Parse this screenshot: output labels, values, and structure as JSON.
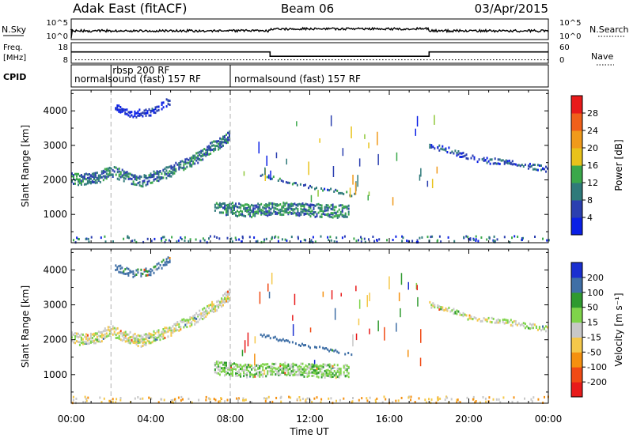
{
  "header": {
    "title": "Adak East (fitACF)",
    "beam": "Beam 06",
    "date": "03/Apr/2015"
  },
  "strip_nsky": {
    "label_left": "N.Sky",
    "label_right": "N.Search",
    "left_ticks": [
      "10^5",
      "10^0"
    ],
    "right_ticks": [
      "10^5",
      "10^0"
    ]
  },
  "strip_freq": {
    "label_left_1": "Freq.",
    "label_left_2": "[MHz]",
    "label_right": "Nave",
    "left_ticks": [
      "18",
      "8"
    ],
    "right_ticks": [
      "60",
      "0"
    ],
    "freq_segments": [
      {
        "x0": 0,
        "x1": 10,
        "value": 13.5
      },
      {
        "x0": 10,
        "x1": 18,
        "value": 11.4
      },
      {
        "x0": 18,
        "x1": 24,
        "value": 13.5
      }
    ],
    "nave_level": 10
  },
  "cpid": {
    "label": "CPID",
    "segments": [
      {
        "start": 0,
        "text": "normalsound (fast) 157 RF"
      },
      {
        "start": 2,
        "text": "rbsp 200 RF"
      },
      {
        "start": 8,
        "text": "normalsound (fast) 157 RF"
      }
    ]
  },
  "colors": {
    "power": [
      "#0a1fe6",
      "#2b3fb0",
      "#2f7a7a",
      "#3aa84a",
      "#90c83a",
      "#e8c21a",
      "#f09a1a",
      "#f0601a",
      "#e81a1a"
    ],
    "velocity": [
      "#e81a1a",
      "#f04a14",
      "#f5900f",
      "#f5c84a",
      "#c8c8c8",
      "#7fd44a",
      "#2f9a2f",
      "#3f6fa6",
      "#1a2fd0"
    ]
  },
  "chart_data": [
    {
      "type": "heatmap",
      "panel": "power",
      "xlabel": "",
      "ylabel": "Slant Range [km]",
      "xlim": [
        0,
        24
      ],
      "ylim": [
        180,
        4600
      ],
      "yticks": [
        1000,
        2000,
        3000,
        4000
      ],
      "colorbar": {
        "label": "Power [dB]",
        "ticks": [
          "4",
          "8",
          "12",
          "16",
          "20",
          "24",
          "28"
        ],
        "range": [
          0,
          32
        ]
      },
      "regions": [
        {
          "name": "band-a",
          "x": [
            0,
            0.5,
            1,
            1.5,
            2,
            2.5,
            3,
            3.5,
            4,
            4.5,
            5,
            5.5,
            6,
            6.5,
            7,
            7.5,
            8
          ],
          "y": [
            2050,
            2000,
            2030,
            2100,
            2250,
            2150,
            2050,
            1950,
            2050,
            2150,
            2250,
            2400,
            2500,
            2700,
            2900,
            3050,
            3300
          ],
          "thickness": 320,
          "level": 9
        },
        {
          "name": "band-b",
          "x": [
            7.2,
            8,
            9,
            10,
            11,
            12,
            13,
            14
          ],
          "y": [
            1200,
            1150,
            1100,
            1150,
            1150,
            1120,
            1100,
            1080
          ],
          "thickness": 380,
          "level": 10
        },
        {
          "name": "band-c",
          "x": [
            9.5,
            10.5,
            11.5,
            12.5,
            13.5,
            14.3
          ],
          "y": [
            2150,
            2000,
            1850,
            1750,
            1650,
            1550
          ],
          "thickness": 90,
          "level": 8
        },
        {
          "name": "band-d",
          "x": [
            18,
            19,
            20,
            21,
            22,
            23,
            24
          ],
          "y": [
            3000,
            2850,
            2650,
            2550,
            2500,
            2400,
            2300
          ],
          "thickness": 160,
          "level": 6
        },
        {
          "name": "band-e",
          "x": [
            2.2,
            3,
            4,
            5
          ],
          "y": [
            4100,
            3900,
            3950,
            4300
          ],
          "thickness": 220,
          "level": 3
        }
      ]
    },
    {
      "type": "heatmap",
      "panel": "velocity",
      "xlabel": "Time UT",
      "ylabel": "Slant Range [km]",
      "xlim": [
        0,
        24
      ],
      "ylim": [
        180,
        4600
      ],
      "xticks": [
        "00:00",
        "04:00",
        "08:00",
        "12:00",
        "16:00",
        "20:00",
        "00:00"
      ],
      "yticks": [
        1000,
        2000,
        3000,
        4000
      ],
      "colorbar": {
        "label": "Velocity [m s⁻¹]",
        "ticks": [
          "200",
          "100",
          "50",
          "15",
          "-15",
          "-50",
          "-100",
          "-200"
        ],
        "range": [
          -250,
          250
        ]
      },
      "regions": [
        {
          "name": "band-a",
          "x": [
            0,
            0.5,
            1,
            1.5,
            2,
            2.5,
            3,
            3.5,
            4,
            4.5,
            5,
            5.5,
            6,
            6.5,
            7,
            7.5,
            8
          ],
          "y": [
            2050,
            2000,
            2030,
            2100,
            2250,
            2150,
            2050,
            1950,
            2050,
            2150,
            2250,
            2400,
            2500,
            2700,
            2900,
            3050,
            3300
          ],
          "thickness": 320,
          "velocity": 0
        },
        {
          "name": "band-b",
          "x": [
            7.2,
            8,
            9,
            10,
            11,
            12,
            13,
            14
          ],
          "y": [
            1200,
            1150,
            1100,
            1150,
            1150,
            1120,
            1100,
            1080
          ],
          "thickness": 380,
          "velocity": 30
        },
        {
          "name": "band-c",
          "x": [
            9.5,
            10.5,
            11.5,
            12.5,
            13.5,
            14.3
          ],
          "y": [
            2150,
            2000,
            1850,
            1750,
            1650,
            1550
          ],
          "thickness": 90,
          "velocity": 150
        },
        {
          "name": "band-d",
          "x": [
            18,
            19,
            20,
            21,
            22,
            23,
            24
          ],
          "y": [
            3000,
            2850,
            2650,
            2550,
            2500,
            2400,
            2300
          ],
          "thickness": 160,
          "velocity": 0
        },
        {
          "name": "band-e",
          "x": [
            2.2,
            3,
            4,
            5
          ],
          "y": [
            4100,
            3900,
            3950,
            4300
          ],
          "thickness": 220,
          "velocity": 120
        }
      ]
    }
  ]
}
